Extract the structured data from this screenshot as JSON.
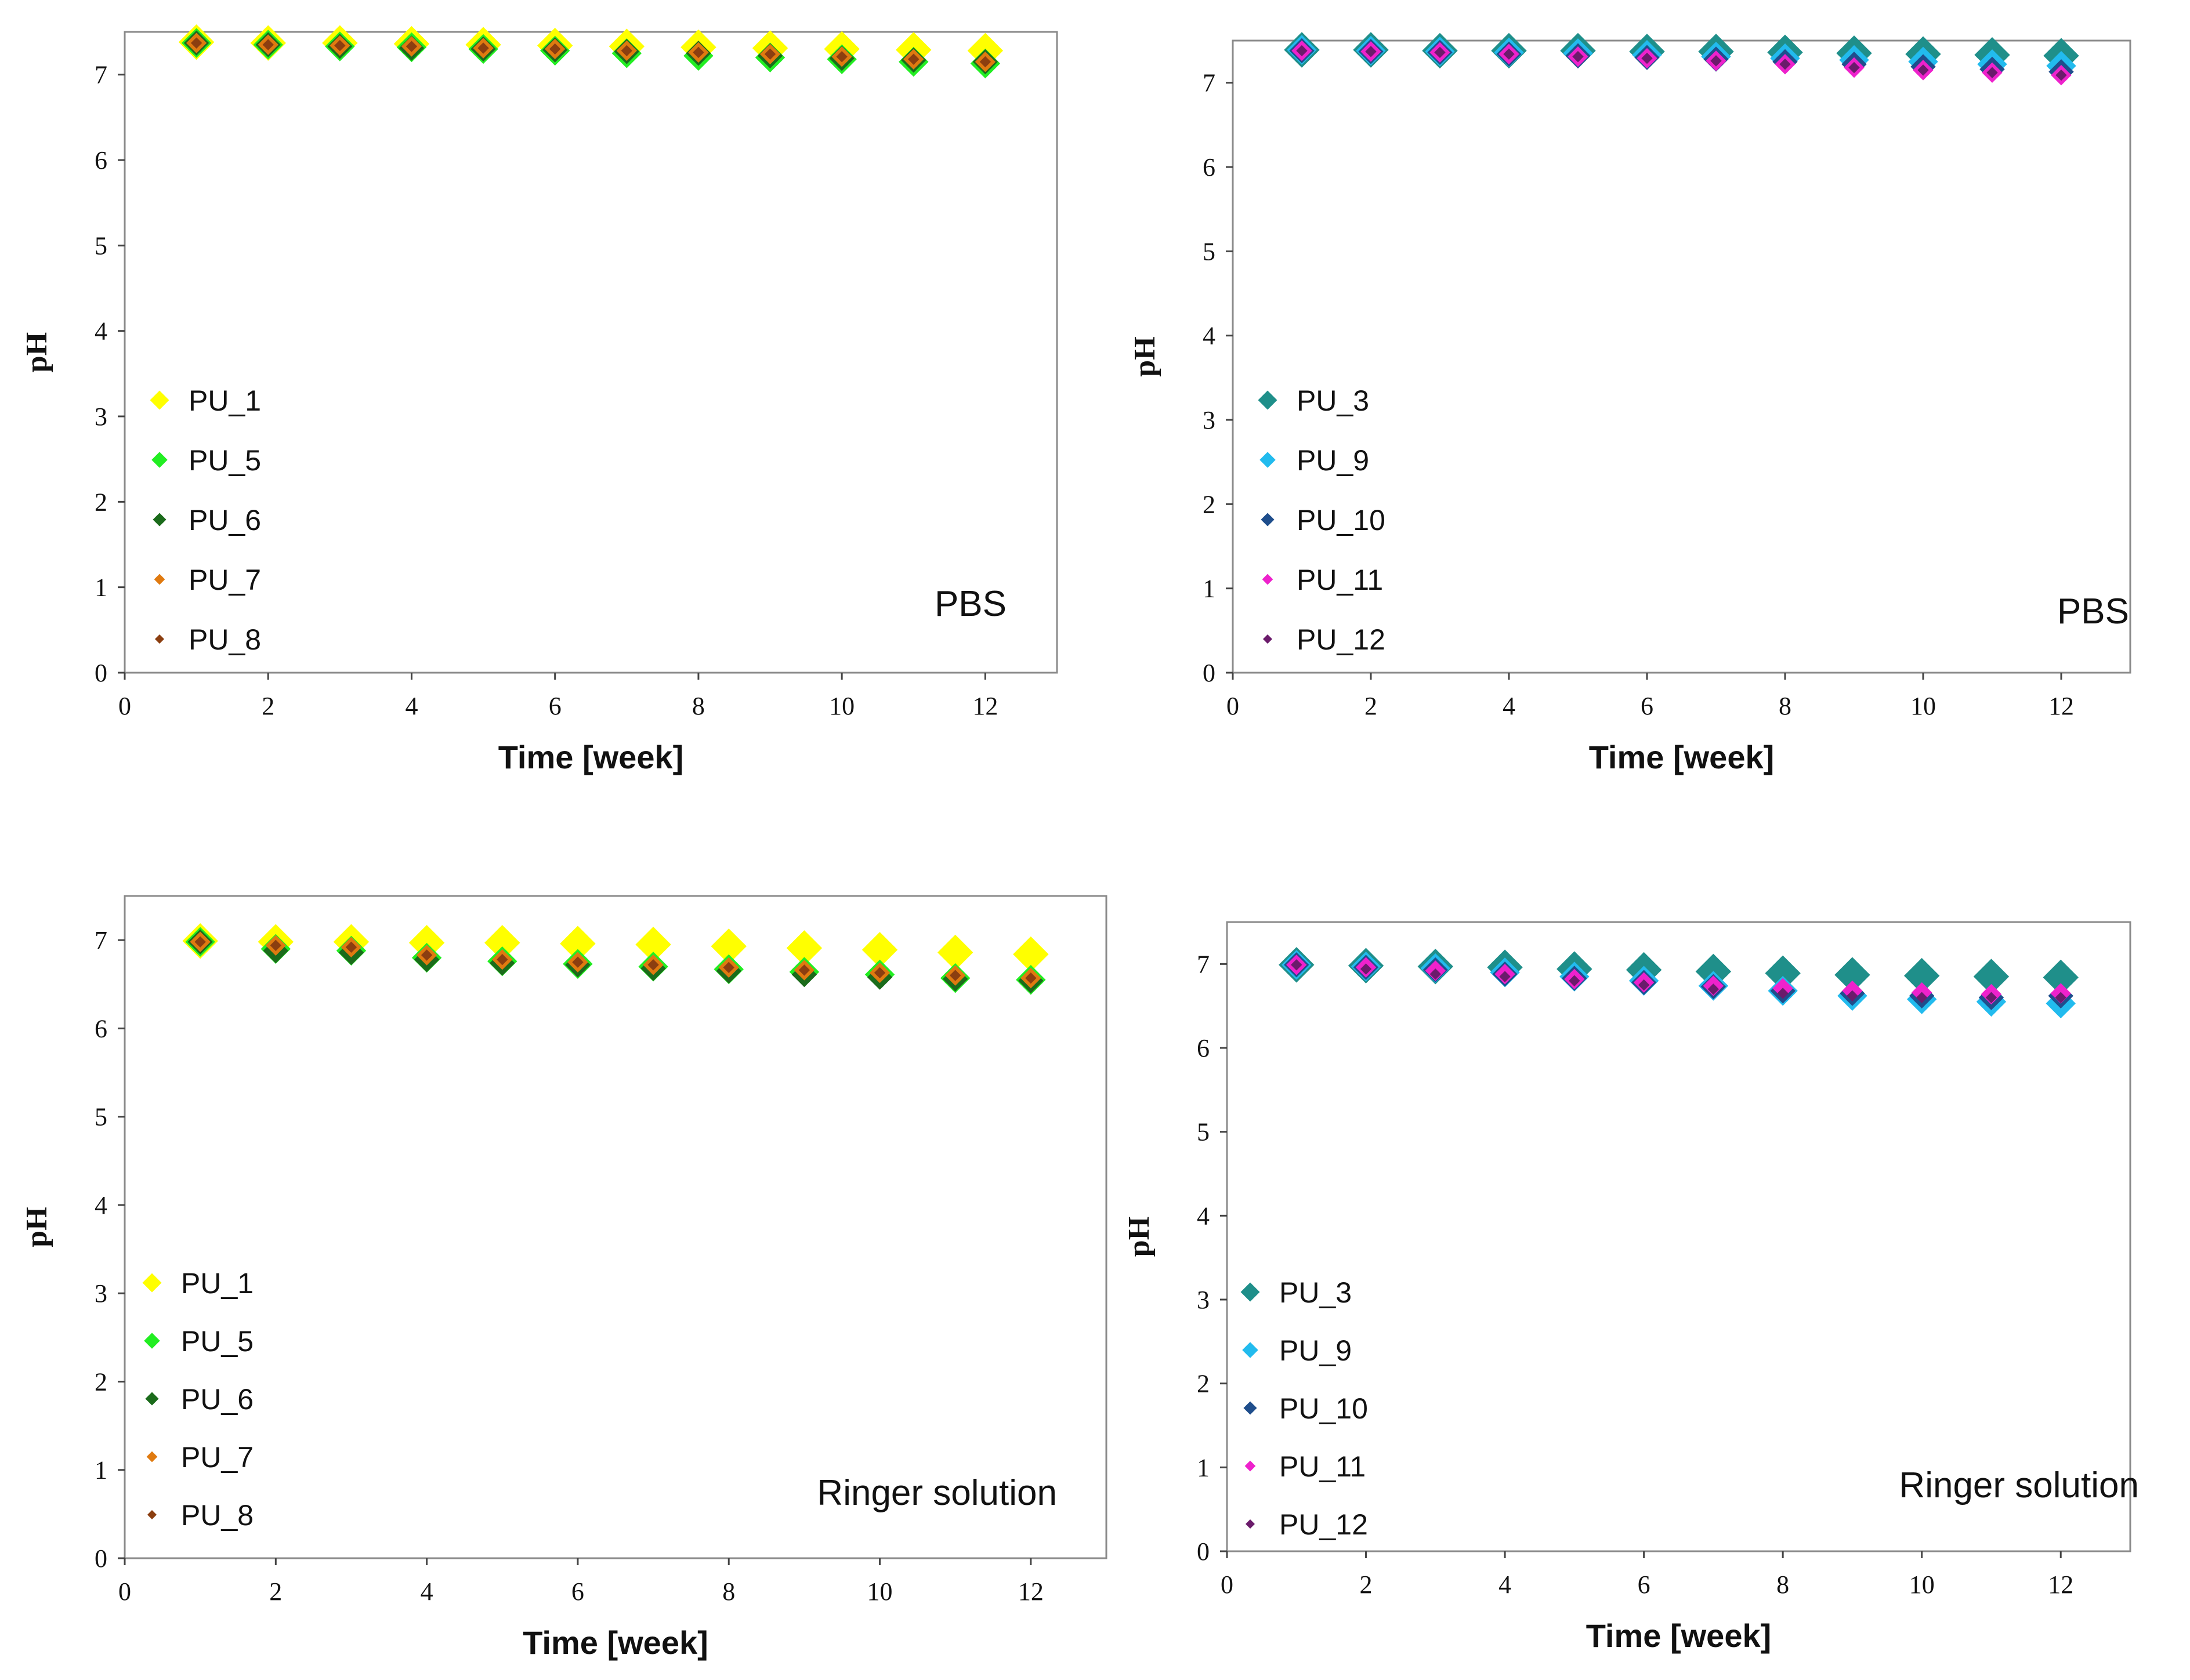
{
  "chart_data": [
    {
      "type": "scatter",
      "medium": "PBS",
      "xlabel": "Time [week]",
      "ylabel": "pH",
      "xlim": [
        0,
        13
      ],
      "ylim": [
        0,
        7.5
      ],
      "x_ticks": [
        "0",
        "2",
        "4",
        "6",
        "8",
        "10",
        "12"
      ],
      "y_ticks": [
        "0",
        "1",
        "2",
        "3",
        "4",
        "5",
        "6",
        "7"
      ],
      "x": [
        1,
        2,
        3,
        4,
        5,
        6,
        7,
        8,
        9,
        10,
        11,
        12
      ],
      "legend_position": "left",
      "series": [
        {
          "name": "PU_1",
          "color": "#ffff00",
          "values": [
            7.38,
            7.37,
            7.37,
            7.36,
            7.35,
            7.34,
            7.33,
            7.32,
            7.31,
            7.3,
            7.29,
            7.28
          ]
        },
        {
          "name": "PU_5",
          "color": "#22ee22",
          "values": [
            7.37,
            7.35,
            7.33,
            7.32,
            7.3,
            7.28,
            7.25,
            7.22,
            7.2,
            7.18,
            7.15,
            7.13
          ]
        },
        {
          "name": "PU_6",
          "color": "#1b6b1b",
          "values": [
            7.37,
            7.35,
            7.33,
            7.31,
            7.3,
            7.29,
            7.27,
            7.25,
            7.22,
            7.19,
            7.17,
            7.15
          ]
        },
        {
          "name": "PU_7",
          "color": "#e07a10",
          "values": [
            7.37,
            7.35,
            7.34,
            7.33,
            7.31,
            7.3,
            7.28,
            7.26,
            7.24,
            7.21,
            7.18,
            7.15
          ]
        },
        {
          "name": "PU_8",
          "color": "#8b3e10",
          "values": [
            7.37,
            7.35,
            7.34,
            7.33,
            7.31,
            7.3,
            7.28,
            7.26,
            7.24,
            7.21,
            7.18,
            7.15
          ]
        }
      ]
    },
    {
      "type": "scatter",
      "medium": "PBS",
      "xlabel": "Time [week]",
      "ylabel": "pH",
      "xlim": [
        0,
        13
      ],
      "ylim": [
        0,
        7.5
      ],
      "x_ticks": [
        "0",
        "2",
        "4",
        "6",
        "8",
        "10",
        "12"
      ],
      "y_ticks": [
        "0",
        "1",
        "2",
        "3",
        "4",
        "5",
        "6",
        "7"
      ],
      "x": [
        1,
        2,
        3,
        4,
        5,
        6,
        7,
        8,
        9,
        10,
        11,
        12
      ],
      "legend_position": "left",
      "series": [
        {
          "name": "PU_3",
          "color": "#1f8f8a",
          "values": [
            7.39,
            7.39,
            7.38,
            7.38,
            7.38,
            7.37,
            7.37,
            7.36,
            7.35,
            7.34,
            7.33,
            7.32
          ]
        },
        {
          "name": "PU_9",
          "color": "#22bbee",
          "values": [
            7.39,
            7.38,
            7.37,
            7.36,
            7.35,
            7.33,
            7.31,
            7.29,
            7.27,
            7.25,
            7.22,
            7.2
          ]
        },
        {
          "name": "PU_10",
          "color": "#1f4e8c",
          "values": [
            7.38,
            7.37,
            7.36,
            7.34,
            7.32,
            7.3,
            7.28,
            7.25,
            7.22,
            7.19,
            7.16,
            7.13
          ]
        },
        {
          "name": "PU_11",
          "color": "#ee22cc",
          "values": [
            7.38,
            7.37,
            7.36,
            7.34,
            7.31,
            7.29,
            7.26,
            7.22,
            7.18,
            7.15,
            7.12,
            7.09
          ]
        },
        {
          "name": "PU_12",
          "color": "#6b1b6b",
          "values": [
            7.38,
            7.37,
            7.36,
            7.34,
            7.31,
            7.29,
            7.26,
            7.22,
            7.18,
            7.15,
            7.12,
            7.09
          ]
        }
      ]
    },
    {
      "type": "scatter",
      "medium": "Ringer solution",
      "xlabel": "Time [week]",
      "ylabel": "pH",
      "xlim": [
        0,
        13
      ],
      "ylim": [
        0,
        7.5
      ],
      "x_ticks": [
        "0",
        "2",
        "4",
        "6",
        "8",
        "10",
        "12"
      ],
      "y_ticks": [
        "0",
        "1",
        "2",
        "3",
        "4",
        "5",
        "6",
        "7"
      ],
      "x": [
        1,
        2,
        3,
        4,
        5,
        6,
        7,
        8,
        9,
        10,
        11,
        12
      ],
      "legend_position": "left",
      "series": [
        {
          "name": "PU_1",
          "color": "#ffff00",
          "values": [
            6.99,
            6.98,
            6.98,
            6.97,
            6.97,
            6.96,
            6.95,
            6.93,
            6.91,
            6.89,
            6.86,
            6.84
          ]
        },
        {
          "name": "PU_5",
          "color": "#22ee22",
          "values": [
            6.98,
            6.9,
            6.88,
            6.8,
            6.76,
            6.73,
            6.7,
            6.67,
            6.64,
            6.61,
            6.57,
            6.55
          ]
        },
        {
          "name": "PU_6",
          "color": "#1b6b1b",
          "values": [
            6.98,
            6.88,
            6.86,
            6.78,
            6.74,
            6.72,
            6.68,
            6.65,
            6.61,
            6.58,
            6.56,
            6.54
          ]
        },
        {
          "name": "PU_7",
          "color": "#e07a10",
          "values": [
            6.98,
            6.94,
            6.92,
            6.83,
            6.78,
            6.75,
            6.72,
            6.69,
            6.66,
            6.63,
            6.6,
            6.57
          ]
        },
        {
          "name": "PU_8",
          "color": "#8b3e10",
          "values": [
            6.98,
            6.94,
            6.92,
            6.83,
            6.78,
            6.75,
            6.72,
            6.69,
            6.66,
            6.63,
            6.6,
            6.57
          ]
        }
      ]
    },
    {
      "type": "scatter",
      "medium": "Ringer solution",
      "xlabel": "Time [week]",
      "ylabel": "pH",
      "xlim": [
        0,
        13
      ],
      "ylim": [
        0,
        7.5
      ],
      "x_ticks": [
        "0",
        "2",
        "4",
        "6",
        "8",
        "10",
        "12"
      ],
      "y_ticks": [
        "0",
        "1",
        "2",
        "3",
        "4",
        "5",
        "6",
        "7"
      ],
      "x": [
        1,
        2,
        3,
        4,
        5,
        6,
        7,
        8,
        9,
        10,
        11,
        12
      ],
      "legend_position": "left",
      "series": [
        {
          "name": "PU_3",
          "color": "#1f8f8a",
          "values": [
            6.99,
            6.98,
            6.97,
            6.96,
            6.94,
            6.93,
            6.91,
            6.89,
            6.87,
            6.86,
            6.85,
            6.84
          ]
        },
        {
          "name": "PU_9",
          "color": "#22bbee",
          "values": [
            6.99,
            6.97,
            6.95,
            6.9,
            6.85,
            6.8,
            6.74,
            6.68,
            6.62,
            6.58,
            6.55,
            6.53
          ]
        },
        {
          "name": "PU_10",
          "color": "#1f4e8c",
          "values": [
            6.99,
            6.96,
            6.93,
            6.88,
            6.83,
            6.78,
            6.73,
            6.68,
            6.65,
            6.62,
            6.6,
            6.62
          ]
        },
        {
          "name": "PU_11",
          "color": "#ee22cc",
          "values": [
            6.99,
            6.96,
            6.92,
            6.88,
            6.82,
            6.78,
            6.74,
            6.71,
            6.68,
            6.66,
            6.64,
            6.65
          ]
        },
        {
          "name": "PU_12",
          "color": "#6b1b6b",
          "values": [
            6.99,
            6.94,
            6.88,
            6.85,
            6.8,
            6.75,
            6.7,
            6.65,
            6.62,
            6.6,
            6.6,
            6.6
          ]
        }
      ]
    }
  ]
}
